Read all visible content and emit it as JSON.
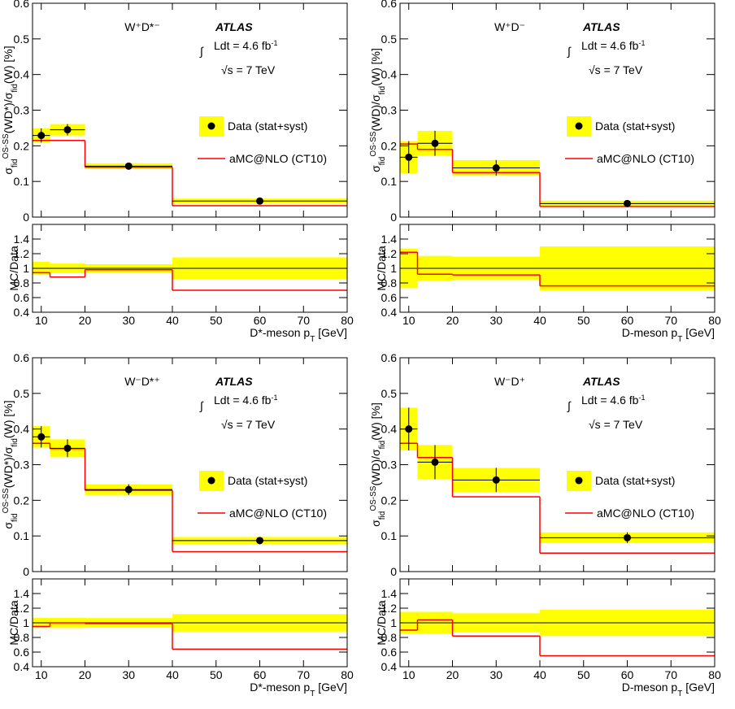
{
  "chart_data": [
    {
      "type": "histogram",
      "title": "W⁺D*⁻",
      "atlas": "ATLAS",
      "lumi": [
        "∫",
        "Ldt = 4.6 fb",
        "-1"
      ],
      "energy": "√s = 7 TeV",
      "x_label": [
        "D*-meson p",
        "T",
        " [GeV]"
      ],
      "y_label": [
        "σ",
        "fid",
        "OS-SS",
        "(WD*)/σ",
        "fid",
        "(W) [%]"
      ],
      "bins": [
        8,
        12,
        20,
        40,
        80
      ],
      "xlim": [
        8,
        80
      ],
      "xticks": [
        10,
        20,
        30,
        40,
        50,
        60,
        70,
        80
      ],
      "ylim": [
        0,
        0.6
      ],
      "yticks": [
        0,
        0.1,
        0.2,
        0.3,
        0.4,
        0.5,
        0.6
      ],
      "series": [
        {
          "name": "Data (stat+syst)",
          "color": "#000000",
          "band_color": "#ffff00",
          "x": [
            10,
            16,
            30,
            60
          ],
          "values": [
            0.229,
            0.245,
            0.143,
            0.045
          ],
          "errors": [
            0.02,
            0.016,
            0.008,
            0.007
          ]
        },
        {
          "name": "aMC@NLO (CT10)",
          "color": "#ff0000",
          "values": [
            0.215,
            0.215,
            0.14,
            0.032
          ]
        }
      ],
      "ratio": {
        "y_label": "MC/Data",
        "ylim": [
          0.4,
          1.6
        ],
        "yticks": [
          0.4,
          0.6,
          0.8,
          1,
          1.2,
          1.4
        ],
        "reference": 1,
        "errors": [
          0.09,
          0.065,
          0.056,
          0.15
        ],
        "values": [
          0.94,
          0.88,
          0.98,
          0.7
        ]
      }
    },
    {
      "type": "histogram",
      "title": "W⁺D⁻",
      "atlas": "ATLAS",
      "lumi": [
        "∫",
        "Ldt = 4.6 fb",
        "-1"
      ],
      "energy": "√s = 7 TeV",
      "x_label": [
        "D-meson p",
        "T",
        " [GeV]"
      ],
      "y_label": [
        "σ",
        "fid",
        "OS-SS",
        "(WD)/σ",
        "fid",
        "(W) [%]"
      ],
      "bins": [
        8,
        12,
        20,
        40,
        80
      ],
      "xlim": [
        8,
        80
      ],
      "xticks": [
        10,
        20,
        30,
        40,
        50,
        60,
        70,
        80
      ],
      "ylim": [
        0,
        0.6
      ],
      "yticks": [
        0,
        0.1,
        0.2,
        0.3,
        0.4,
        0.5,
        0.6
      ],
      "series": [
        {
          "name": "Data (stat+syst)",
          "color": "#000000",
          "band_color": "#ffff00",
          "x": [
            10,
            16,
            30,
            60
          ],
          "values": [
            0.168,
            0.207,
            0.138,
            0.038
          ],
          "errors": [
            0.045,
            0.035,
            0.022,
            0.008
          ]
        },
        {
          "name": "aMC@NLO (CT10)",
          "color": "#ff0000",
          "values": [
            0.205,
            0.19,
            0.125,
            0.03
          ]
        }
      ],
      "ratio": {
        "y_label": "MC/Data",
        "ylim": [
          0.4,
          1.6
        ],
        "yticks": [
          0.4,
          0.6,
          0.8,
          1,
          1.2,
          1.4
        ],
        "reference": 1,
        "errors": [
          0.27,
          0.17,
          0.16,
          0.3
        ],
        "values": [
          1.22,
          0.92,
          0.91,
          0.76
        ]
      }
    },
    {
      "type": "histogram",
      "title": "W⁻D*⁺",
      "atlas": "ATLAS",
      "lumi": [
        "∫",
        "Ldt = 4.6 fb",
        "-1"
      ],
      "energy": "√s = 7 TeV",
      "x_label": [
        "D*-meson p",
        "T",
        " [GeV]"
      ],
      "y_label": [
        "σ",
        "fid",
        "OS-SS",
        "(WD*)/σ",
        "fid",
        "(W) [%]"
      ],
      "bins": [
        8,
        12,
        20,
        40,
        80
      ],
      "xlim": [
        8,
        80
      ],
      "xticks": [
        10,
        20,
        30,
        40,
        50,
        60,
        70,
        80
      ],
      "ylim": [
        0,
        0.6
      ],
      "yticks": [
        0,
        0.1,
        0.2,
        0.3,
        0.4,
        0.5,
        0.6
      ],
      "series": [
        {
          "name": "Data (stat+syst)",
          "color": "#000000",
          "band_color": "#ffff00",
          "x": [
            10,
            16,
            30,
            60
          ],
          "values": [
            0.378,
            0.346,
            0.23,
            0.087
          ],
          "errors": [
            0.03,
            0.025,
            0.015,
            0.01
          ]
        },
        {
          "name": "aMC@NLO (CT10)",
          "color": "#ff0000",
          "values": [
            0.36,
            0.345,
            0.228,
            0.056
          ]
        }
      ],
      "ratio": {
        "y_label": "MC/Data",
        "ylim": [
          0.4,
          1.6
        ],
        "yticks": [
          0.4,
          0.6,
          0.8,
          1,
          1.2,
          1.4
        ],
        "reference": 1,
        "errors": [
          0.07,
          0.07,
          0.065,
          0.12
        ],
        "values": [
          0.95,
          1.0,
          0.99,
          0.64
        ]
      }
    },
    {
      "type": "histogram",
      "title": "W⁻D⁺",
      "atlas": "ATLAS",
      "lumi": [
        "∫",
        "Ldt = 4.6 fb",
        "-1"
      ],
      "energy": "√s = 7 TeV",
      "x_label": [
        "D-meson p",
        "T",
        " [GeV]"
      ],
      "y_label": [
        "σ",
        "fid",
        "OS-SS",
        "(WD)/σ",
        "fid",
        "(W) [%]"
      ],
      "bins": [
        8,
        12,
        20,
        40,
        80
      ],
      "xlim": [
        8,
        80
      ],
      "xticks": [
        10,
        20,
        30,
        40,
        50,
        60,
        70,
        80
      ],
      "ylim": [
        0,
        0.6
      ],
      "yticks": [
        0,
        0.1,
        0.2,
        0.3,
        0.4,
        0.5,
        0.6
      ],
      "series": [
        {
          "name": "Data (stat+syst)",
          "color": "#000000",
          "band_color": "#ffff00",
          "x": [
            10,
            16,
            30,
            60
          ],
          "values": [
            0.4,
            0.307,
            0.257,
            0.095
          ],
          "errors": [
            0.06,
            0.048,
            0.034,
            0.015
          ]
        },
        {
          "name": "aMC@NLO (CT10)",
          "color": "#ff0000",
          "values": [
            0.36,
            0.32,
            0.21,
            0.052
          ]
        }
      ],
      "ratio": {
        "y_label": "MC/Data",
        "ylim": [
          0.4,
          1.6
        ],
        "yticks": [
          0.4,
          0.6,
          0.8,
          1,
          1.2,
          1.4
        ],
        "reference": 1,
        "errors": [
          0.15,
          0.15,
          0.13,
          0.18
        ],
        "values": [
          0.9,
          1.04,
          0.82,
          0.55
        ]
      }
    }
  ]
}
